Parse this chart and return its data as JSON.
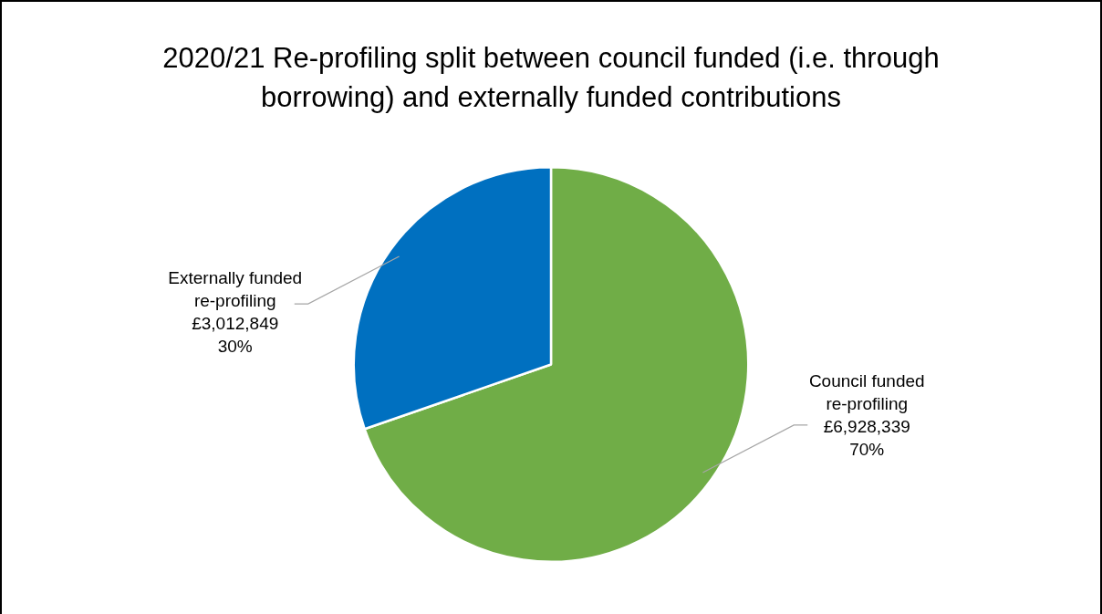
{
  "chart_data": {
    "type": "pie",
    "title": "2020/21 Re-profiling split between council funded (i.e. through borrowing) and externally funded contributions",
    "categories": [
      "Council funded re-profiling",
      "Externally funded re-profiling"
    ],
    "values": [
      6928339,
      3012849
    ],
    "colors": [
      "#70ad47",
      "#0070c0"
    ],
    "value_labels": [
      "£6,928,339\n70%",
      "£3,012,849\n30%"
    ],
    "legend": false
  }
}
